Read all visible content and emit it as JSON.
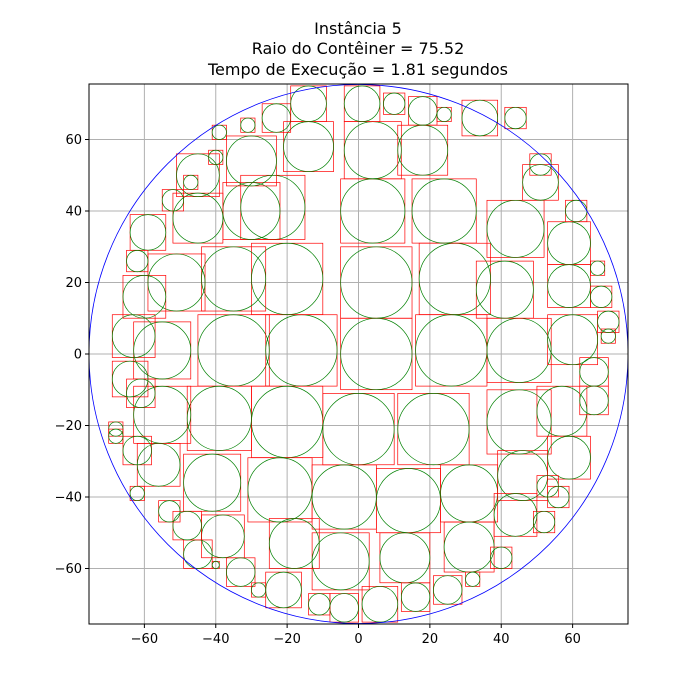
{
  "title": {
    "line1": "Instância 5",
    "line2": "Raio do Contêiner = 75.52",
    "line3": "Tempo de Execução = 1.81 segundos"
  },
  "colors": {
    "container": "#0000ff",
    "circle": "#008000",
    "square": "#ff0000",
    "grid": "#b0b0b0"
  },
  "chart_data": {
    "type": "scatter",
    "grid": true,
    "xlim": [
      -75.52,
      75.52
    ],
    "ylim": [
      -75.52,
      75.52
    ],
    "xticks": [
      -60,
      -40,
      -20,
      0,
      20,
      40,
      60
    ],
    "yticks": [
      -60,
      -40,
      -20,
      0,
      20,
      40,
      60
    ],
    "container_radius": 75.52,
    "circles": [
      [
        -35,
        1,
        10
      ],
      [
        -16,
        1,
        10
      ],
      [
        5,
        0,
        10
      ],
      [
        26,
        1,
        10
      ],
      [
        -20,
        21,
        10
      ],
      [
        5,
        20,
        10
      ],
      [
        27,
        21,
        10
      ],
      [
        -20,
        -19,
        10
      ],
      [
        0,
        -21,
        10
      ],
      [
        21,
        -21,
        10
      ],
      [
        -35,
        21,
        9
      ],
      [
        -39,
        -18,
        9
      ],
      [
        -55,
        1,
        8
      ],
      [
        -55,
        -17,
        8
      ],
      [
        -22,
        -38,
        9
      ],
      [
        14,
        -41,
        9
      ],
      [
        -4,
        -40,
        9
      ],
      [
        -24,
        41,
        9
      ],
      [
        4,
        40,
        9
      ],
      [
        24,
        40,
        9
      ],
      [
        -41,
        -36,
        8
      ],
      [
        -5,
        -58,
        8
      ],
      [
        13,
        -57,
        7
      ],
      [
        45,
        -19,
        9
      ],
      [
        45,
        1,
        9
      ],
      [
        41,
        18,
        8
      ],
      [
        -51,
        20,
        8
      ],
      [
        44,
        35,
        8
      ],
      [
        31,
        -39,
        8
      ],
      [
        -30,
        40,
        8
      ],
      [
        -45,
        38,
        7
      ],
      [
        4,
        57,
        8
      ],
      [
        -14,
        58,
        7
      ],
      [
        18,
        57,
        7
      ],
      [
        -30,
        54,
        7
      ],
      [
        -18,
        -53,
        7
      ],
      [
        31,
        -54,
        7
      ],
      [
        -56,
        -31,
        6
      ],
      [
        46,
        -34,
        7
      ],
      [
        57,
        -16,
        7
      ],
      [
        60,
        4,
        7
      ],
      [
        59,
        19,
        6
      ],
      [
        59,
        31,
        6
      ],
      [
        51,
        48,
        5
      ],
      [
        -45,
        50,
        6
      ],
      [
        -63,
        5,
        6
      ],
      [
        -61,
        -11,
        4
      ],
      [
        -64,
        -7,
        5
      ],
      [
        -60,
        16,
        6
      ],
      [
        -59,
        34,
        5
      ],
      [
        -52,
        43,
        3
      ],
      [
        -47,
        48,
        2
      ],
      [
        -38,
        -51,
        6
      ],
      [
        -33,
        -61,
        4
      ],
      [
        -21,
        -66,
        5
      ],
      [
        -45,
        -56,
        4
      ],
      [
        34,
        66,
        5
      ],
      [
        44,
        66,
        3
      ],
      [
        51,
        53,
        3
      ],
      [
        52,
        -47,
        3
      ],
      [
        59,
        -29,
        6
      ],
      [
        66,
        -13,
        4
      ],
      [
        68,
        16,
        3
      ],
      [
        67,
        24,
        2
      ],
      [
        70,
        9,
        3
      ],
      [
        70,
        5,
        2
      ],
      [
        61,
        40,
        3
      ],
      [
        66,
        -5,
        4
      ],
      [
        -62,
        -27,
        4
      ],
      [
        -62,
        -39,
        2
      ],
      [
        -68,
        -21,
        2
      ],
      [
        -68,
        -23,
        2
      ],
      [
        -62,
        26,
        3
      ],
      [
        -39,
        62,
        2
      ],
      [
        -40,
        55,
        2
      ],
      [
        -31,
        64,
        2
      ],
      [
        -23,
        66,
        4
      ],
      [
        -14,
        70,
        5
      ],
      [
        1,
        70,
        5
      ],
      [
        10,
        70,
        3
      ],
      [
        18,
        68,
        4
      ],
      [
        24,
        67,
        2
      ],
      [
        -4,
        -71,
        4
      ],
      [
        6,
        -70,
        5
      ],
      [
        16,
        -68,
        4
      ],
      [
        25,
        -66,
        4
      ],
      [
        -11,
        -70,
        3
      ],
      [
        32,
        -63,
        2
      ],
      [
        40,
        -57,
        3
      ],
      [
        44,
        -45,
        6
      ],
      [
        56,
        -40,
        3
      ],
      [
        53,
        -37,
        3
      ],
      [
        -28,
        -66,
        2
      ],
      [
        -40,
        -59,
        1
      ],
      [
        -48,
        -48,
        4
      ],
      [
        -53,
        -44,
        3
      ]
    ]
  }
}
